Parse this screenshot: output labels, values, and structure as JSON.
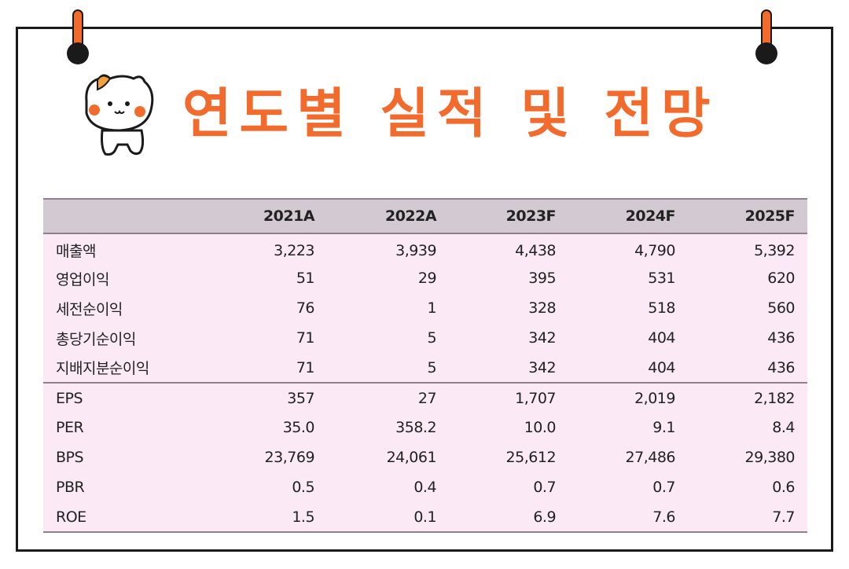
{
  "title": "연도별 실적 및 전망",
  "colors": {
    "accent": "#f26a2c",
    "header_bg": "#d3c9d3",
    "row_bg": "#fbe9f6",
    "border": "#8d8190"
  },
  "table": {
    "headers": [
      "",
      "2021A",
      "2022A",
      "2023F",
      "2024F",
      "2025F"
    ],
    "group1": [
      {
        "label": "매출액",
        "values": [
          "3,223",
          "3,939",
          "4,438",
          "4,790",
          "5,392"
        ]
      },
      {
        "label": "영업이익",
        "values": [
          "51",
          "29",
          "395",
          "531",
          "620"
        ]
      },
      {
        "label": "세전순이익",
        "values": [
          "76",
          "1",
          "328",
          "518",
          "560"
        ]
      },
      {
        "label": "총당기순이익",
        "values": [
          "71",
          "5",
          "342",
          "404",
          "436"
        ]
      },
      {
        "label": "지배지분순이익",
        "values": [
          "71",
          "5",
          "342",
          "404",
          "436"
        ]
      }
    ],
    "group2": [
      {
        "label": "EPS",
        "values": [
          "357",
          "27",
          "1,707",
          "2,019",
          "2,182"
        ]
      },
      {
        "label": "PER",
        "values": [
          "35.0",
          "358.2",
          "10.0",
          "9.1",
          "8.4"
        ]
      },
      {
        "label": "BPS",
        "values": [
          "23,769",
          "24,061",
          "25,612",
          "27,486",
          "29,380"
        ]
      },
      {
        "label": "PBR",
        "values": [
          "0.5",
          "0.4",
          "0.7",
          "0.7",
          "0.6"
        ]
      },
      {
        "label": "ROE",
        "values": [
          "1.5",
          "0.1",
          "6.9",
          "7.6",
          "7.7"
        ]
      }
    ]
  }
}
